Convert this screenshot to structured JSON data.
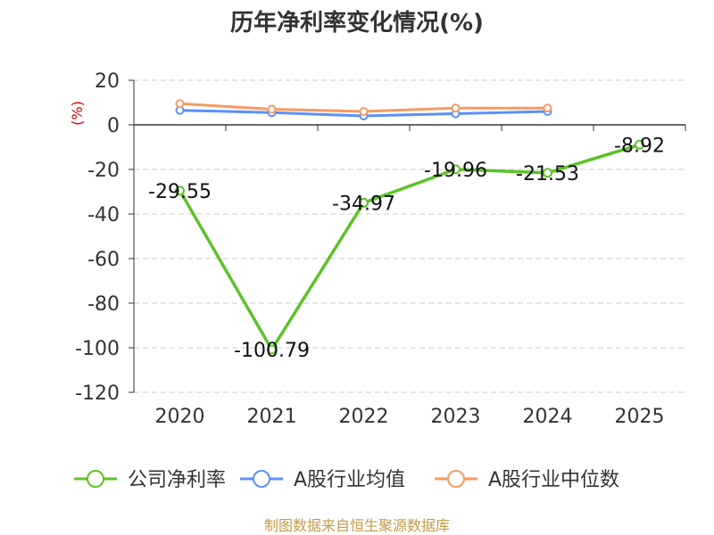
{
  "title": "历年净利率变化情况(%)",
  "unit_label": "(%)",
  "source": "制图数据来自恒生聚源数据库",
  "colors": {
    "series_0": "#5dc229",
    "series_1": "#5b8ff9",
    "series_2": "#f59a64",
    "grid": "#cccccc",
    "axis": "#333333"
  },
  "chart_data": {
    "type": "line",
    "title": "历年净利率变化情况(%)",
    "ylabel": "(%)",
    "xlabel": "",
    "categories": [
      "2020",
      "2021",
      "2022",
      "2023",
      "2024",
      "2025"
    ],
    "ylim": [
      -120,
      20
    ],
    "yticks": [
      20,
      0,
      -20,
      -40,
      -60,
      -80,
      -100,
      -120
    ],
    "grid": true,
    "legend_position": "bottom",
    "series": [
      {
        "name": "公司净利率",
        "values": [
          -29.55,
          -100.79,
          -34.97,
          -19.96,
          -21.53,
          -8.92
        ],
        "data_labels": [
          "-29.55",
          "-100.79",
          "-34.97",
          "-19.96",
          "-21.53",
          "-8.92"
        ]
      },
      {
        "name": "A股行业均值",
        "values": [
          6.5,
          5.5,
          4.0,
          5.0,
          6.0,
          null
        ]
      },
      {
        "name": "A股行业中位数",
        "values": [
          9.5,
          7.0,
          6.0,
          7.5,
          7.5,
          null
        ]
      }
    ]
  }
}
